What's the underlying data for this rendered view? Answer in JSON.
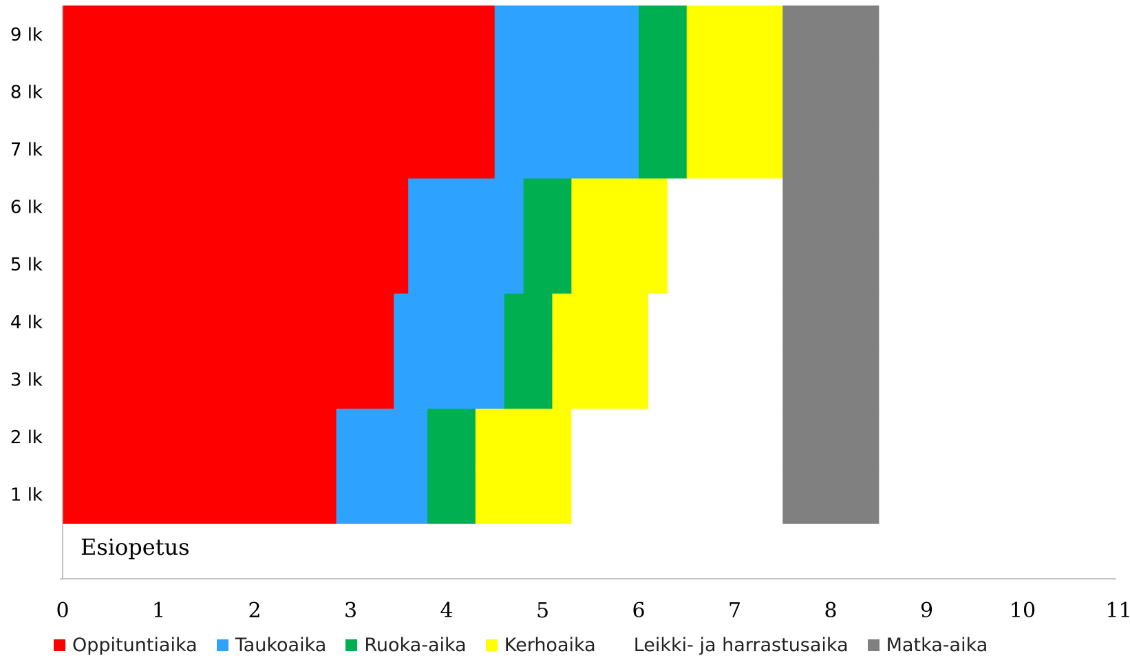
{
  "chart_data": {
    "type": "bar",
    "orientation": "horizontal",
    "stacked": true,
    "categories": [
      "1 lk",
      "2 lk",
      "3 lk",
      "4 lk",
      "5 lk",
      "6 lk",
      "7 lk",
      "8 lk",
      "9 lk"
    ],
    "x_ticks": [
      "0",
      "1",
      "2",
      "3",
      "4",
      "5",
      "6",
      "7",
      "8",
      "9",
      "10",
      "11"
    ],
    "xlim": [
      0,
      11
    ],
    "grid": false,
    "legend_position": "bottom",
    "series": [
      {
        "name": "Oppituntiaika",
        "color": "#ff0000",
        "values": [
          2.85,
          2.85,
          3.45,
          3.45,
          3.6,
          3.6,
          4.5,
          4.5,
          4.5
        ]
      },
      {
        "name": "Taukoaika",
        "color": "#2ea2ff",
        "values": [
          0.95,
          0.95,
          1.15,
          1.15,
          1.2,
          1.2,
          1.5,
          1.5,
          1.5
        ]
      },
      {
        "name": "Ruoka-aika",
        "color": "#00b050",
        "values": [
          0.5,
          0.5,
          0.5,
          0.5,
          0.5,
          0.5,
          0.5,
          0.5,
          0.5
        ]
      },
      {
        "name": "Kerhoaika",
        "color": "#ffff00",
        "values": [
          1.0,
          1.0,
          1.0,
          1.0,
          1.0,
          1.0,
          1.0,
          1.0,
          1.0
        ]
      },
      {
        "name": "Leikki- ja harrastusaika",
        "color": "#ffffff",
        "values": [
          2.2,
          2.2,
          1.4,
          1.4,
          1.2,
          1.2,
          0,
          0,
          0
        ]
      },
      {
        "name": "Matka-aika",
        "color": "#808080",
        "values": [
          1.0,
          1.0,
          1.0,
          1.0,
          1.0,
          1.0,
          1.0,
          1.0,
          1.0
        ]
      }
    ],
    "annotation": "Esiopetus"
  }
}
